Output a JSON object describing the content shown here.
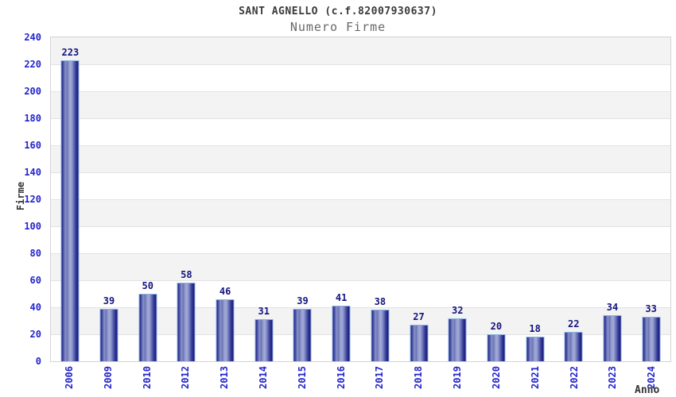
{
  "chart_data": {
    "type": "bar",
    "title": "SANT AGNELLO (c.f.82007930637)",
    "subtitle": "Numero Firme",
    "xlabel": "Anno",
    "ylabel": "Firme",
    "categories": [
      "2006",
      "2009",
      "2010",
      "2012",
      "2013",
      "2014",
      "2015",
      "2016",
      "2017",
      "2018",
      "2019",
      "2020",
      "2021",
      "2022",
      "2023",
      "2024"
    ],
    "values": [
      223,
      39,
      50,
      58,
      46,
      31,
      39,
      41,
      38,
      27,
      32,
      20,
      18,
      22,
      34,
      33
    ],
    "ylim": [
      0,
      240
    ],
    "ytick_step": 20,
    "yticks": [
      0,
      20,
      40,
      60,
      80,
      100,
      120,
      140,
      160,
      180,
      200,
      220,
      240
    ],
    "grid": true,
    "legend": "none",
    "colors": {
      "bar_dark": "#20208a",
      "bar_highlight": "#a2abd7",
      "bar_border": "#89b0e0",
      "value_label": "#14147d",
      "axis_tick_label": "#2424cd",
      "axis_title": "#333333",
      "title": "#3a3a3a",
      "subtitle": "#676767",
      "band_gray": "#f3f3f3",
      "plot_border": "#d4d4d4",
      "gridline": "#e2e2e2"
    }
  }
}
